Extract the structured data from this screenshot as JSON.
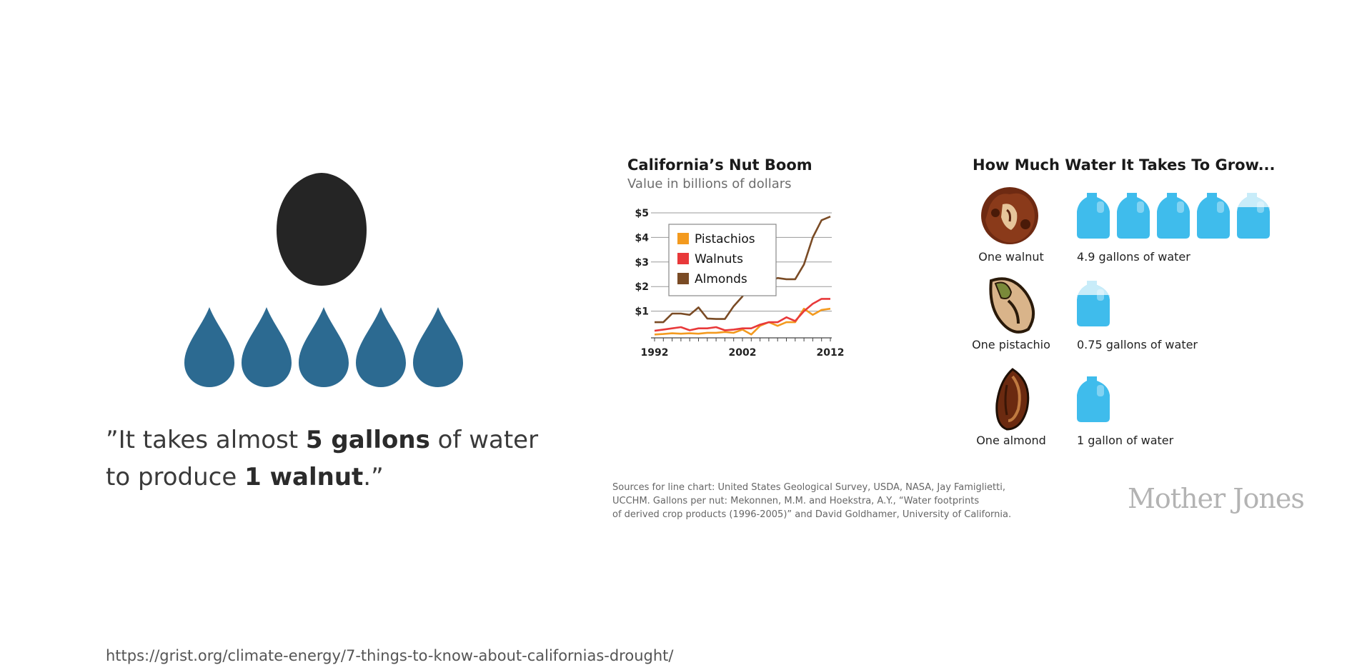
{
  "quote": {
    "open": "”It takes almost ",
    "bold1": "5 gallons",
    "middle": " of water to produce ",
    "bold2": "1 walnut",
    "close": ".”"
  },
  "source_url": "https://grist.org/climate-energy/7-things-to-know-about-californias-drought/",
  "icons": {
    "nut": "walnut-silhouette-icon",
    "drop": "water-drop-icon",
    "drop_count": 5,
    "drop_color": "#2c6a91"
  },
  "chart_data": {
    "type": "line",
    "title": "California’s Nut Boom",
    "subtitle": "Value in billions of dollars",
    "xlabel": "",
    "ylabel": "",
    "x": [
      1992,
      1993,
      1994,
      1995,
      1996,
      1997,
      1998,
      1999,
      2000,
      2001,
      2002,
      2003,
      2004,
      2005,
      2006,
      2007,
      2008,
      2009,
      2010,
      2011,
      2012
    ],
    "x_ticks": [
      "1992",
      "2002",
      "2012"
    ],
    "y_ticks": [
      "$1",
      "$2",
      "$3",
      "$4",
      "$5"
    ],
    "ylim": [
      0,
      5
    ],
    "grid": true,
    "legend_position": "top-left",
    "series": [
      {
        "name": "Pistachios",
        "color": "#f39a1f",
        "values": [
          0.05,
          0.07,
          0.1,
          0.08,
          0.1,
          0.08,
          0.12,
          0.12,
          0.15,
          0.12,
          0.25,
          0.05,
          0.4,
          0.55,
          0.4,
          0.55,
          0.55,
          1.1,
          0.85,
          1.05,
          1.1
        ]
      },
      {
        "name": "Walnuts",
        "color": "#e8393a",
        "values": [
          0.2,
          0.25,
          0.3,
          0.35,
          0.22,
          0.3,
          0.3,
          0.35,
          0.22,
          0.25,
          0.3,
          0.3,
          0.45,
          0.55,
          0.55,
          0.75,
          0.6,
          1.0,
          1.3,
          1.5,
          1.5
        ]
      },
      {
        "name": "Almonds",
        "color": "#7a4b25",
        "values": [
          0.55,
          0.55,
          0.9,
          0.9,
          0.85,
          1.15,
          0.7,
          0.68,
          0.68,
          1.2,
          1.6,
          2.2,
          2.5,
          2.2,
          2.35,
          2.3,
          2.3,
          2.9,
          4.0,
          4.7,
          4.85
        ]
      }
    ]
  },
  "water": {
    "title": "How Much Water It Takes To Grow...",
    "jug_color": "#3fbcec",
    "rows": [
      {
        "nut_icon": "walnut-icon",
        "nut_label": "One walnut",
        "jugs": 4.9,
        "jug_display": 5,
        "water_label": "4.9 gallons of water"
      },
      {
        "nut_icon": "pistachio-icon",
        "nut_label": "One pistachio",
        "jugs": 0.75,
        "jug_display": 1,
        "water_label": "0.75 gallons of water"
      },
      {
        "nut_icon": "almond-icon",
        "nut_label": "One almond",
        "jugs": 1,
        "jug_display": 1,
        "water_label": "1 gallon of water"
      }
    ]
  },
  "sources": {
    "line1": "Sources for line chart: United States Geological Survey, USDA, NASA, Jay Famiglietti,",
    "line2": "UCCHM. Gallons per nut: Mekonnen, M.M. and Hoekstra, A.Y., “Water footprints",
    "line3": "of derived crop products (1996-2005)” and David Goldhamer, University of California."
  },
  "logo": "Mother Jones"
}
